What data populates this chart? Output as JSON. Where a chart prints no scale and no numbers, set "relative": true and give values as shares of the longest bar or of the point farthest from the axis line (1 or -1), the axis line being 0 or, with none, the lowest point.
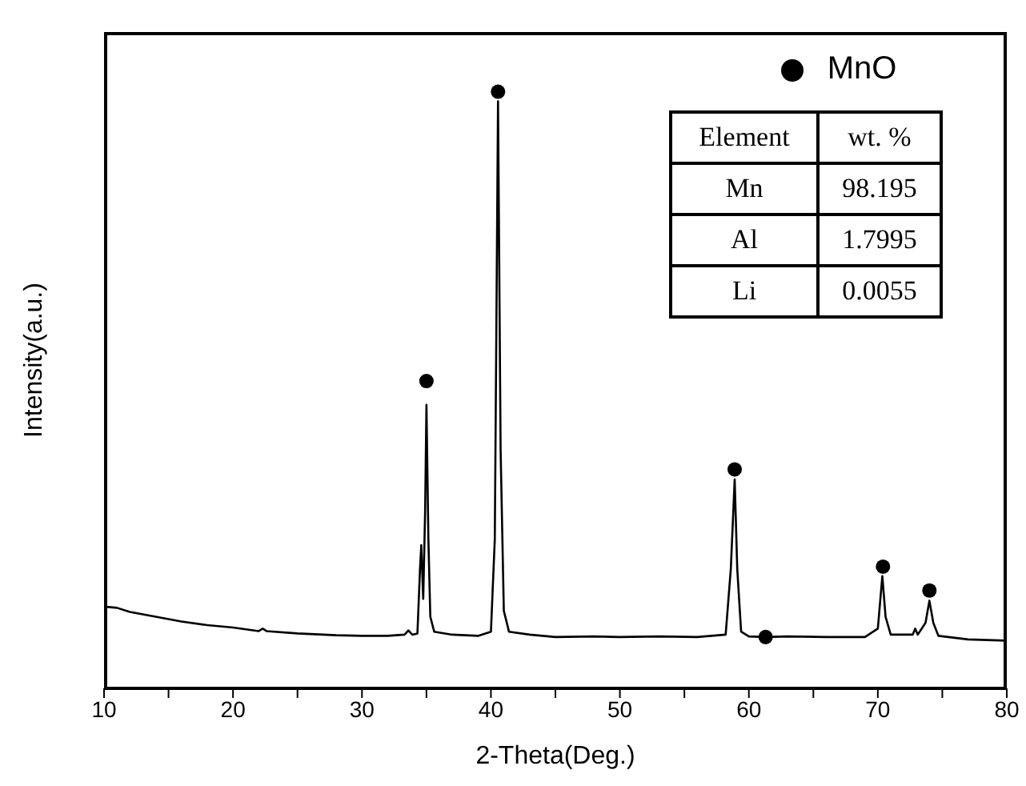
{
  "chart_data": {
    "type": "line",
    "relative": true,
    "xlabel": "2-Theta(Deg.)",
    "ylabel": "Intensity(a.u.)",
    "xlim": [
      10,
      80
    ],
    "xticks": [
      10,
      {
        "value": 15,
        "label": null
      },
      20,
      {
        "value": 25,
        "label": null
      },
      30,
      {
        "value": 35,
        "label": null
      },
      40,
      {
        "value": 45,
        "label": null
      },
      50,
      {
        "value": 55,
        "label": null
      },
      60,
      {
        "value": 65,
        "label": null
      },
      70,
      {
        "value": 75,
        "label": null
      },
      80
    ],
    "legend": "top right",
    "grid": false,
    "annotations": [
      "Element",
      "wt. %",
      "Mn",
      "98.195",
      "Al",
      "1.7995",
      "Li",
      "0.0055"
    ],
    "series": [
      {
        "color": "#000000",
        "marker": "none",
        "x": [
          10,
          11,
          12,
          14,
          16,
          18,
          20,
          22,
          22.3,
          22.6,
          25,
          28,
          30,
          32,
          33.3,
          33.6,
          33.9,
          34.3,
          34.5,
          34.6,
          34.75,
          34.9,
          35.0,
          35.15,
          35.3,
          35.6,
          37,
          39,
          40.0,
          40.3,
          40.55,
          40.75,
          41.0,
          41.4,
          43,
          45,
          48,
          50,
          53,
          56,
          58.2,
          58.6,
          58.9,
          59.1,
          59.4,
          60,
          61.3,
          63,
          66,
          69,
          70,
          70.35,
          70.6,
          71,
          72.7,
          72.9,
          73.1,
          73.7,
          74.0,
          74.3,
          74.7,
          77,
          80
        ],
        "values": [
          0.137,
          0.135,
          0.128,
          0.12,
          0.112,
          0.106,
          0.102,
          0.096,
          0.1,
          0.096,
          0.092,
          0.089,
          0.088,
          0.088,
          0.09,
          0.097,
          0.09,
          0.092,
          0.2,
          0.24,
          0.15,
          0.3,
          0.475,
          0.25,
          0.12,
          0.095,
          0.09,
          0.088,
          0.095,
          0.25,
          0.984,
          0.4,
          0.13,
          0.095,
          0.09,
          0.086,
          0.087,
          0.086,
          0.087,
          0.086,
          0.09,
          0.2,
          0.35,
          0.2,
          0.095,
          0.087,
          0.086,
          0.087,
          0.086,
          0.086,
          0.1,
          0.188,
          0.12,
          0.09,
          0.09,
          0.1,
          0.09,
          0.11,
          0.147,
          0.11,
          0.088,
          0.082,
          0.08
        ]
      },
      {
        "type": "scatter",
        "name": "MnO",
        "color": "#000000",
        "marker": "circle",
        "x": [
          35.0,
          40.55,
          58.9,
          61.3,
          70.4,
          74.0
        ],
        "values": [
          0.515,
          1,
          0.367,
          0.086,
          0.204,
          0.164
        ]
      }
    ]
  }
}
